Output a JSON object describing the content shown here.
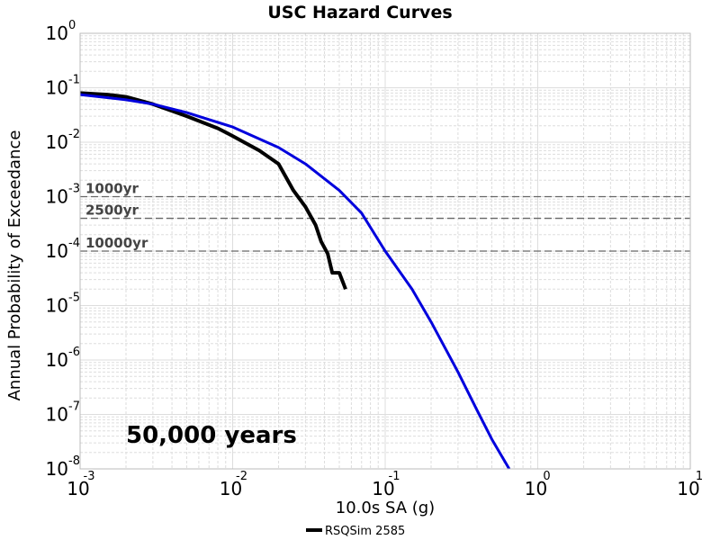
{
  "chart_data": {
    "type": "line",
    "title": "USC Hazard Curves",
    "xlabel": "10.0s SA (g)",
    "ylabel": "Annual Probability of Exceedance",
    "xscale": "log",
    "yscale": "log",
    "xlim": [
      0.001,
      10
    ],
    "ylim": [
      1e-08,
      1
    ],
    "grid": true,
    "x_ticks": [
      {
        "base": "10",
        "exp": "-3",
        "value": 0.001
      },
      {
        "base": "10",
        "exp": "-2",
        "value": 0.01
      },
      {
        "base": "10",
        "exp": "-1",
        "value": 0.1
      },
      {
        "base": "10",
        "exp": "0",
        "value": 1
      },
      {
        "base": "10",
        "exp": "1",
        "value": 10
      }
    ],
    "y_ticks": [
      {
        "base": "10",
        "exp": "0",
        "value": 1
      },
      {
        "base": "10",
        "exp": "-1",
        "value": 0.1
      },
      {
        "base": "10",
        "exp": "-2",
        "value": 0.01
      },
      {
        "base": "10",
        "exp": "-3",
        "value": 0.001
      },
      {
        "base": "10",
        "exp": "-4",
        "value": 0.0001
      },
      {
        "base": "10",
        "exp": "-5",
        "value": 1e-05
      },
      {
        "base": "10",
        "exp": "-6",
        "value": 1e-06
      },
      {
        "base": "10",
        "exp": "-7",
        "value": 1e-07
      },
      {
        "base": "10",
        "exp": "-8",
        "value": 1e-08
      }
    ],
    "reference_lines": [
      {
        "label": "1000yr",
        "y": 0.001
      },
      {
        "label": "2500yr",
        "y": 0.0004
      },
      {
        "label": "10000yr",
        "y": 0.0001
      }
    ],
    "annotation": "50,000 years",
    "legend": {
      "placement": "bottom-center"
    },
    "series": [
      {
        "name": "RSQSim 2585",
        "color": "#000000",
        "in_legend": true,
        "points": [
          [
            0.001,
            0.08
          ],
          [
            0.0015,
            0.075
          ],
          [
            0.002,
            0.068
          ],
          [
            0.003,
            0.05
          ],
          [
            0.005,
            0.03
          ],
          [
            0.008,
            0.018
          ],
          [
            0.01,
            0.013
          ],
          [
            0.015,
            0.007
          ],
          [
            0.02,
            0.004
          ],
          [
            0.025,
            0.0013
          ],
          [
            0.03,
            0.00065
          ],
          [
            0.035,
            0.0003
          ],
          [
            0.038,
            0.00015
          ],
          [
            0.042,
            9e-05
          ],
          [
            0.045,
            4e-05
          ],
          [
            0.05,
            4e-05
          ],
          [
            0.055,
            2e-05
          ]
        ]
      },
      {
        "color": "#0000dd",
        "in_legend": false,
        "points": [
          [
            0.001,
            0.075
          ],
          [
            0.002,
            0.06
          ],
          [
            0.003,
            0.05
          ],
          [
            0.005,
            0.035
          ],
          [
            0.01,
            0.019
          ],
          [
            0.02,
            0.008
          ],
          [
            0.03,
            0.004
          ],
          [
            0.05,
            0.0013
          ],
          [
            0.07,
            0.0005
          ],
          [
            0.1,
            0.0001
          ],
          [
            0.15,
            2e-05
          ],
          [
            0.2,
            5e-06
          ],
          [
            0.3,
            6e-07
          ],
          [
            0.4,
            1.2e-07
          ],
          [
            0.5,
            3.5e-08
          ],
          [
            0.65,
            1e-08
          ]
        ]
      }
    ]
  }
}
